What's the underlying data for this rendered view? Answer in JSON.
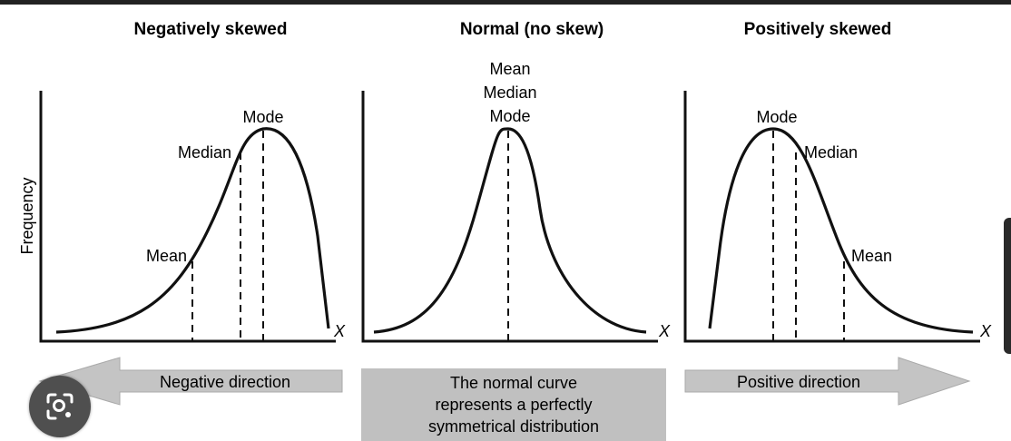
{
  "titles": {
    "negative": "Negatively skewed",
    "normal": "Normal (no skew)",
    "positive": "Positively skewed"
  },
  "y_axis_label": "Frequency",
  "x_label": "X",
  "labels": {
    "neg_mode": "Mode",
    "neg_median": "Median",
    "neg_mean": "Mean",
    "norm_mean": "Mean",
    "norm_median": "Median",
    "norm_mode": "Mode",
    "pos_mode": "Mode",
    "pos_median": "Median",
    "pos_mean": "Mean"
  },
  "arrows": {
    "negative": "Negative direction",
    "positive": "Positive direction"
  },
  "normal_box": {
    "line1": "The normal curve",
    "line2": "represents a perfectly",
    "line3": "symmetrical distribution"
  },
  "colors": {
    "ink": "#111111",
    "arrow_fill": "#c4c4c4",
    "box_fill": "#c0c0c0",
    "overlay_button": "#4f4f4f"
  },
  "icons": {
    "overlay_button": "lens-search-icon"
  }
}
